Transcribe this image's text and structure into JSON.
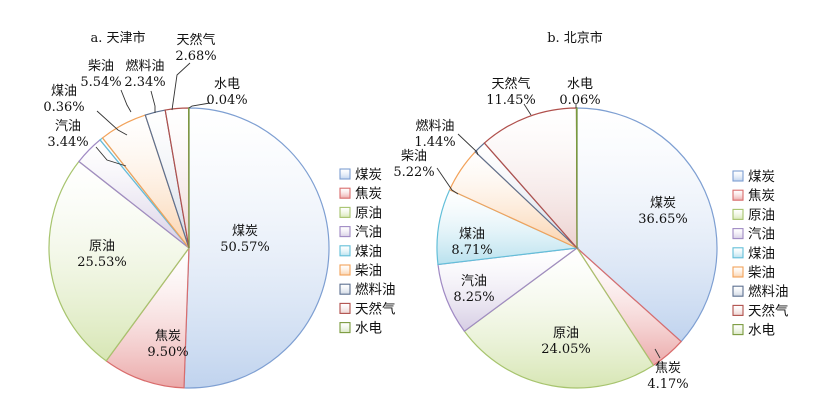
{
  "chart_data": [
    {
      "type": "pie",
      "title": "a. 天津市",
      "slices": [
        {
          "name": "煤炭",
          "value": 50.57,
          "label": "50.57%"
        },
        {
          "name": "焦炭",
          "value": 9.5,
          "label": "9.50%"
        },
        {
          "name": "原油",
          "value": 25.53,
          "label": "25.53%"
        },
        {
          "name": "汽油",
          "value": 3.44,
          "label": "3.44%"
        },
        {
          "name": "煤油",
          "value": 0.36,
          "label": "0.36%"
        },
        {
          "name": "柴油",
          "value": 5.54,
          "label": "5.54%"
        },
        {
          "name": "燃料油",
          "value": 2.34,
          "label": "2.34%"
        },
        {
          "name": "天然气",
          "value": 2.68,
          "label": "2.68%"
        },
        {
          "name": "水电",
          "value": 0.04,
          "label": "0.04%"
        }
      ],
      "legend_position": "right"
    },
    {
      "type": "pie",
      "title": "b. 北京市",
      "slices": [
        {
          "name": "煤炭",
          "value": 36.65,
          "label": "36.65%"
        },
        {
          "name": "焦炭",
          "value": 4.17,
          "label": "4.17%"
        },
        {
          "name": "原油",
          "value": 24.05,
          "label": "24.05%"
        },
        {
          "name": "汽油",
          "value": 8.25,
          "label": "8.25%"
        },
        {
          "name": "煤油",
          "value": 8.71,
          "label": "8.71%"
        },
        {
          "name": "柴油",
          "value": 5.22,
          "label": "5.22%"
        },
        {
          "name": "燃料油",
          "value": 1.44,
          "label": "1.44%"
        },
        {
          "name": "天然气",
          "value": 11.45,
          "label": "11.45%"
        },
        {
          "name": "水电",
          "value": 0.06,
          "label": "0.06%"
        }
      ],
      "legend_position": "right"
    }
  ],
  "legend": [
    "煤炭",
    "焦炭",
    "原油",
    "汽油",
    "煤油",
    "柴油",
    "燃料油",
    "天然气",
    "水电"
  ],
  "colors": {
    "fill": [
      "#c0d3ee",
      "#eba9a9",
      "#d7e6b4",
      "#d6cde4",
      "#b8e1ee",
      "#fad2ac",
      "#cfd7e3",
      "#ecd1cf",
      "#d8e6c2"
    ],
    "stroke": [
      "#7e9fd2",
      "#d96d6d",
      "#a7c46e",
      "#a08ac4",
      "#63bfd9",
      "#f2a25a",
      "#5d7090",
      "#b0504c",
      "#7a9a3e"
    ]
  }
}
